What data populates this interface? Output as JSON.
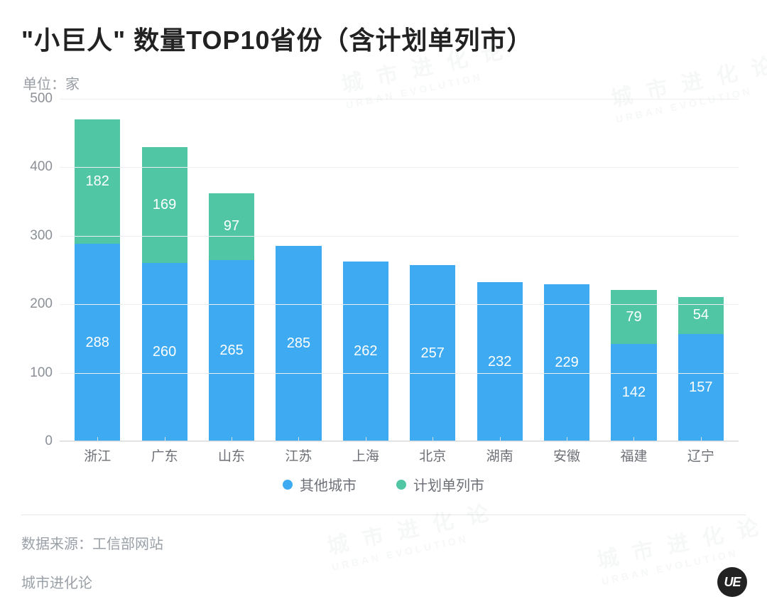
{
  "title": "\"小巨人\" 数量TOP10省份（含计划单列市）",
  "unit_label": "单位：家",
  "chart": {
    "type": "stacked-bar",
    "categories": [
      "浙江",
      "广东",
      "山东",
      "江苏",
      "上海",
      "北京",
      "湖南",
      "安徽",
      "福建",
      "辽宁"
    ],
    "series": [
      {
        "name": "其他城市",
        "color": "#3eaaf1",
        "values": [
          288,
          260,
          265,
          285,
          262,
          257,
          232,
          229,
          142,
          157
        ]
      },
      {
        "name": "计划单列市",
        "color": "#51c6a4",
        "values": [
          182,
          169,
          97,
          0,
          0,
          0,
          0,
          0,
          79,
          54
        ]
      }
    ],
    "value_label_color": "#ffffff",
    "value_label_fontsize": 20,
    "ylim": [
      0,
      500
    ],
    "ytick_step": 100,
    "grid_color": "#eceef0",
    "axis_color": "#d6d9dc",
    "axis_label_color": "#8b9097",
    "category_label_color": "#6d7177",
    "axis_label_fontsize": 19,
    "bar_width_ratio": 0.68,
    "background_color": "#ffffff"
  },
  "legend": {
    "items": [
      {
        "label": "其他城市",
        "color": "#3eaaf1"
      },
      {
        "label": "计划单列市",
        "color": "#51c6a4"
      }
    ],
    "fontsize": 20,
    "color": "#6d7177"
  },
  "source_label": "数据来源：工信部网站",
  "brand_label": "城市进化论",
  "badge_text": "UE",
  "watermark": {
    "cn": "城 市 进 化 论",
    "en": "URBAN  EVOLUTION"
  }
}
